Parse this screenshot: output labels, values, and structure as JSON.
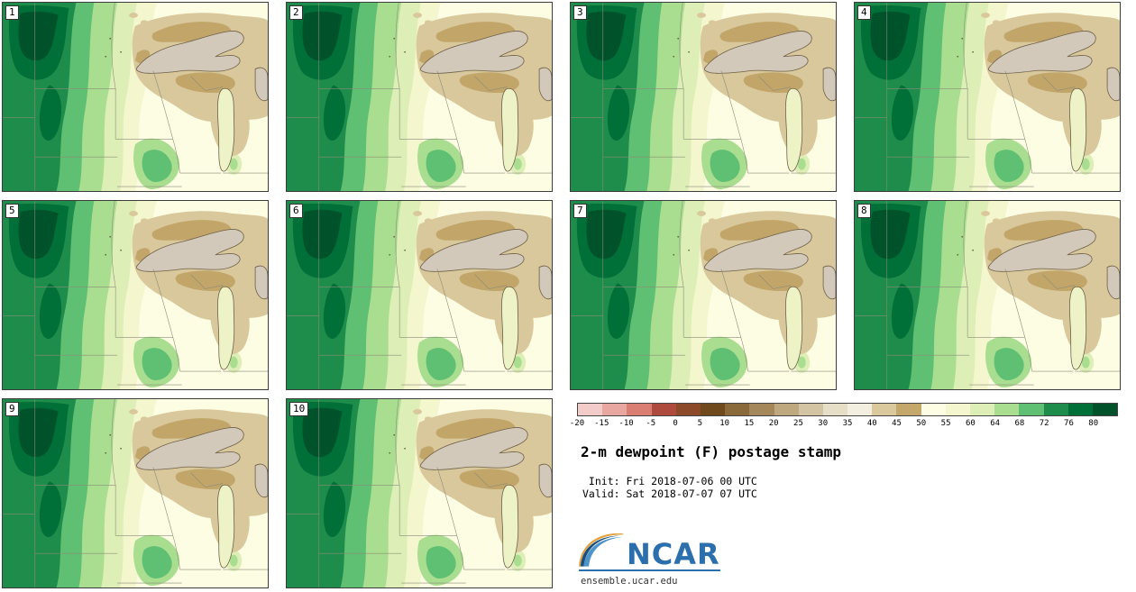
{
  "panels": [
    {
      "label": "1"
    },
    {
      "label": "2"
    },
    {
      "label": "3"
    },
    {
      "label": "4"
    },
    {
      "label": "5"
    },
    {
      "label": "6"
    },
    {
      "label": "7"
    },
    {
      "label": "8"
    },
    {
      "label": "9"
    },
    {
      "label": "10"
    }
  ],
  "colorbar": {
    "tick_labels": [
      "-20",
      "-15",
      "-10",
      "-5",
      "0",
      "5",
      "10",
      "15",
      "20",
      "25",
      "30",
      "35",
      "40",
      "45",
      "50",
      "55",
      "60",
      "64",
      "68",
      "72",
      "76",
      "80"
    ],
    "segment_colors": [
      "#F3CCCA",
      "#E8A7A1",
      "#DA7E74",
      "#AE4A3E",
      "#8C4A2B",
      "#6F4A1C",
      "#8A693B",
      "#A4885C",
      "#BDA87F",
      "#D3C5A3",
      "#E6DEC6",
      "#F2EFE1",
      "#DAC99C",
      "#C3A76B",
      "#FDFDE4",
      "#F4F7CE",
      "#DDEFB6",
      "#A9DD90",
      "#5FBF72",
      "#1E8C4A",
      "#006F38",
      "#00522A"
    ]
  },
  "info": {
    "title": "2-m dewpoint (F) postage stamp",
    "init_line": " Init: Fri 2018-07-06 00 UTC",
    "valid_line": "Valid: Sat 2018-07-07 07 UTC",
    "logo_text": "NCAR",
    "site": "ensemble.ucar.edu"
  },
  "brand": {
    "ncar_blue": "#2C6FAD",
    "ncar_dark": "#1C4F7C",
    "ncar_light": "#4E94C9",
    "ncar_orange": "#E2A23F"
  },
  "map_colors": {
    "ivory": "#FDFDE4",
    "paleyellow": "#F4F7CE",
    "palegreen": "#DDEFB6",
    "lightgreen": "#A9DD90",
    "medgreen": "#5FBF72",
    "darkgreen": "#1E8C4A",
    "darkest": "#006F38",
    "deepest": "#00522A",
    "tan": "#D9C89B",
    "khaki": "#C2A569",
    "lakesup": "#D2C9BA",
    "lakemich": "#EDF3C6",
    "outline": "#6E6048",
    "stateline": "#8C8C7A"
  },
  "chart_data": {
    "type": "heatmap",
    "subtype": "ensemble-postage-stamp-filled-contour-maps",
    "title": "2-m dewpoint (F) postage stamp",
    "units": "F",
    "levels": [
      -20,
      -15,
      -10,
      -5,
      0,
      5,
      10,
      15,
      20,
      25,
      30,
      35,
      40,
      45,
      50,
      55,
      60,
      64,
      68,
      72,
      76,
      80
    ],
    "level_colors": [
      "#F3CCCA",
      "#E8A7A1",
      "#DA7E74",
      "#AE4A3E",
      "#8C4A2B",
      "#6F4A1C",
      "#8A693B",
      "#A4885C",
      "#BDA87F",
      "#D3C5A3",
      "#E6DEC6",
      "#F2EFE1",
      "#DAC99C",
      "#C3A76B",
      "#FDFDE4",
      "#F4F7CE",
      "#DDEFB6",
      "#A9DD90",
      "#5FBF72",
      "#1E8C4A",
      "#006F38",
      "#00522A"
    ],
    "members": [
      "1",
      "2",
      "3",
      "4",
      "5",
      "6",
      "7",
      "8",
      "9",
      "10"
    ],
    "init": "Fri 2018-07-06 00 UTC",
    "valid": "Sat 2018-07-07 07 UTC",
    "region": "Upper Midwest / Great Lakes",
    "legend_position": "bottom-right",
    "grid": "4 columns x 3 rows, 10 map panels"
  }
}
